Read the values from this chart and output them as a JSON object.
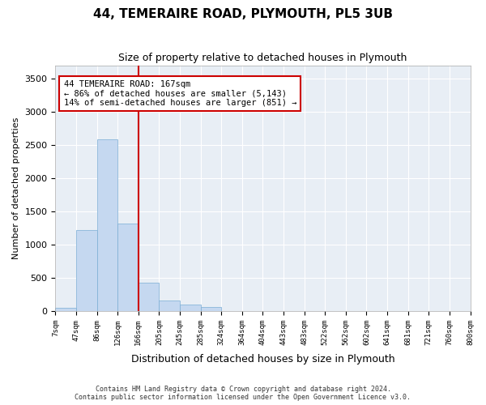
{
  "title": "44, TEMERAIRE ROAD, PLYMOUTH, PL5 3UB",
  "subtitle": "Size of property relative to detached houses in Plymouth",
  "xlabel": "Distribution of detached houses by size in Plymouth",
  "ylabel": "Number of detached properties",
  "bar_color": "#c5d8f0",
  "bar_edge_color": "#7aadd4",
  "background_color": "#e8eef5",
  "grid_color": "#ffffff",
  "annotation_line_color": "#cc0000",
  "annotation_box_color": "#cc0000",
  "property_label": "44 TEMERAIRE ROAD: 167sqm",
  "annotation_line1": "← 86% of detached houses are smaller (5,143)",
  "annotation_line2": "14% of semi-detached houses are larger (851) →",
  "bin_labels": [
    "7sqm",
    "47sqm",
    "86sqm",
    "126sqm",
    "166sqm",
    "205sqm",
    "245sqm",
    "285sqm",
    "324sqm",
    "364sqm",
    "404sqm",
    "443sqm",
    "483sqm",
    "522sqm",
    "562sqm",
    "602sqm",
    "641sqm",
    "681sqm",
    "721sqm",
    "760sqm",
    "800sqm"
  ],
  "bar_heights": [
    50,
    1220,
    2580,
    1320,
    430,
    160,
    100,
    55,
    5,
    5,
    5,
    0,
    0,
    0,
    0,
    0,
    0,
    0,
    0,
    0
  ],
  "ylim": [
    0,
    3700
  ],
  "yticks": [
    0,
    500,
    1000,
    1500,
    2000,
    2500,
    3000,
    3500
  ],
  "red_line_bin": 4,
  "footer_line1": "Contains HM Land Registry data © Crown copyright and database right 2024.",
  "footer_line2": "Contains public sector information licensed under the Open Government Licence v3.0."
}
